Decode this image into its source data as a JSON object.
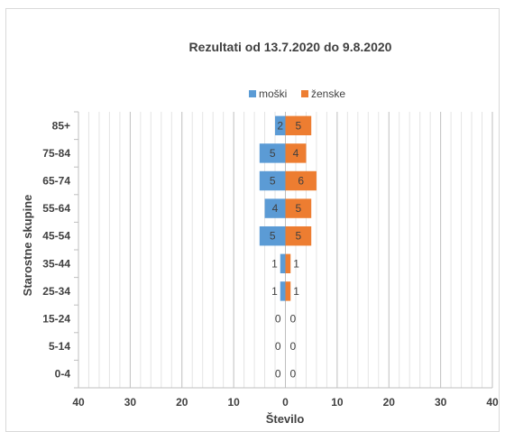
{
  "chart_data": {
    "type": "bar",
    "orientation": "horizontal",
    "layout": "population-pyramid",
    "title": "Rezultati od 13.7.2020 do 9.8.2020",
    "xlabel": "Število",
    "ylabel": "Starostne skupine",
    "categories": [
      "85+",
      "75-84",
      "65-74",
      "55-64",
      "45-54",
      "35-44",
      "25-34",
      "15-24",
      "5-14",
      "0-4"
    ],
    "series": [
      {
        "name": "moški",
        "color": "#5b9bd5",
        "side": "left",
        "values": [
          2,
          5,
          5,
          4,
          5,
          1,
          1,
          0,
          0,
          0
        ]
      },
      {
        "name": "ženske",
        "color": "#ed7d31",
        "side": "right",
        "values": [
          5,
          4,
          6,
          5,
          5,
          1,
          1,
          0,
          0,
          0
        ]
      }
    ],
    "xlim": [
      -40,
      40
    ],
    "xticks": [
      -40,
      -30,
      -20,
      -10,
      0,
      10,
      20,
      30,
      40
    ],
    "xtick_labels": [
      "40",
      "30",
      "20",
      "10",
      "0",
      "10",
      "20",
      "30",
      "40"
    ],
    "grid": true,
    "legend_position": "top"
  }
}
